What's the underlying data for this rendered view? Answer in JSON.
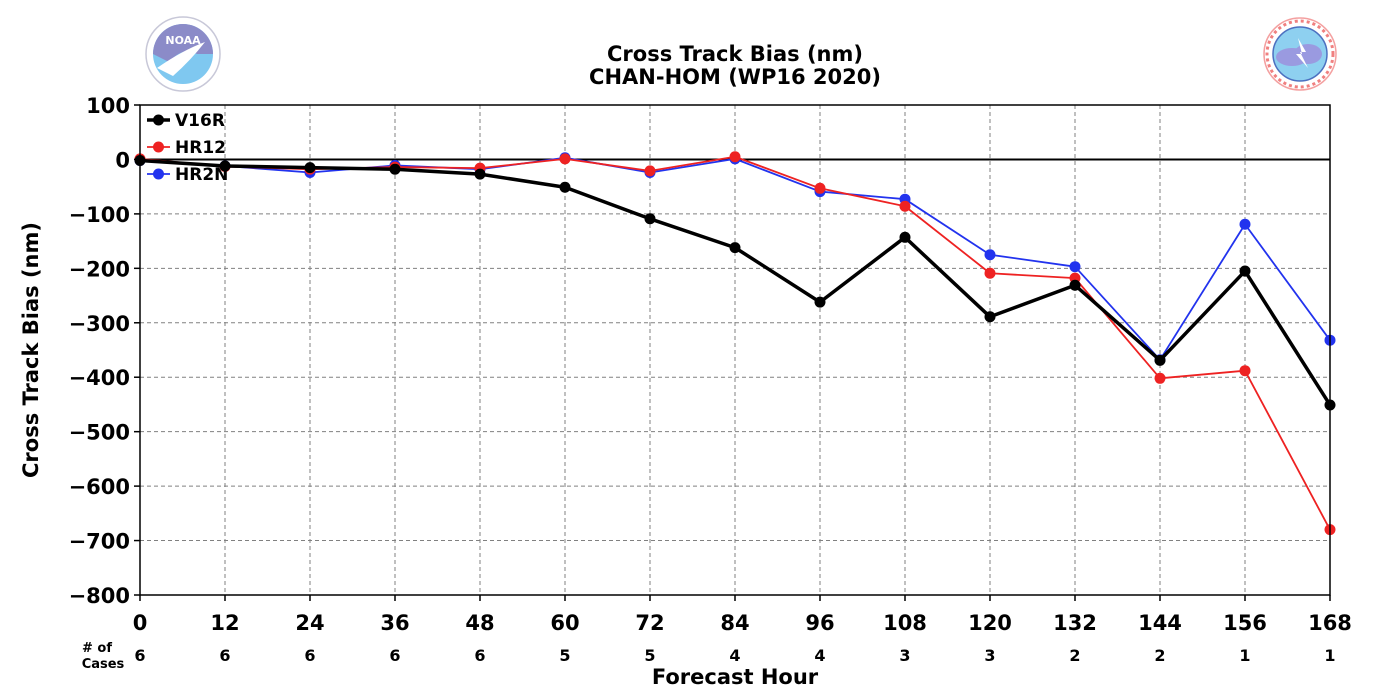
{
  "chart_data": {
    "type": "line",
    "title": "Cross Track Bias (nm)",
    "subtitle": "CHAN-HOM (WP16 2020)",
    "xlabel": "Forecast Hour",
    "ylabel": "Cross Track Bias (nm)",
    "x": [
      0,
      12,
      24,
      36,
      48,
      60,
      72,
      84,
      96,
      108,
      120,
      132,
      144,
      156,
      168
    ],
    "xlim": [
      0,
      168
    ],
    "ylim": [
      -800,
      100
    ],
    "yticks": [
      100,
      0,
      -100,
      -200,
      -300,
      -400,
      -500,
      -600,
      -700,
      -800
    ],
    "grid": true,
    "zero_line": true,
    "legend_position": "top-left",
    "cases_label": [
      "# of",
      "Cases"
    ],
    "cases": [
      6,
      6,
      6,
      6,
      6,
      5,
      5,
      4,
      4,
      3,
      3,
      2,
      2,
      1,
      1
    ],
    "series": [
      {
        "name": "V16R",
        "color": "#000000",
        "values": [
          -2,
          -12,
          -15,
          -18,
          -27,
          -51,
          -109,
          -162,
          -262,
          -143,
          -289,
          -231,
          -369,
          -205,
          -451
        ]
      },
      {
        "name": "HR12",
        "color": "#ee2222",
        "values": [
          1,
          -13,
          -18,
          -14,
          -16,
          1,
          -21,
          5,
          -53,
          -86,
          -209,
          -218,
          -402,
          -388,
          -680
        ]
      },
      {
        "name": "HR2N",
        "color": "#2233ee",
        "values": [
          -2,
          -12,
          -24,
          -11,
          -18,
          3,
          -24,
          1,
          -59,
          -73,
          -175,
          -197,
          -368,
          -119,
          -332
        ]
      }
    ]
  },
  "logos": {
    "noaa": {
      "text": "NOAA",
      "ring_text": "NATIONAL OCEANIC AND ATMOSPHERIC ADMINISTRATION · U.S. DEPARTMENT OF COMMERCE"
    },
    "nws": {
      "ring_text": "NATIONAL WEATHER SERVICE"
    }
  }
}
